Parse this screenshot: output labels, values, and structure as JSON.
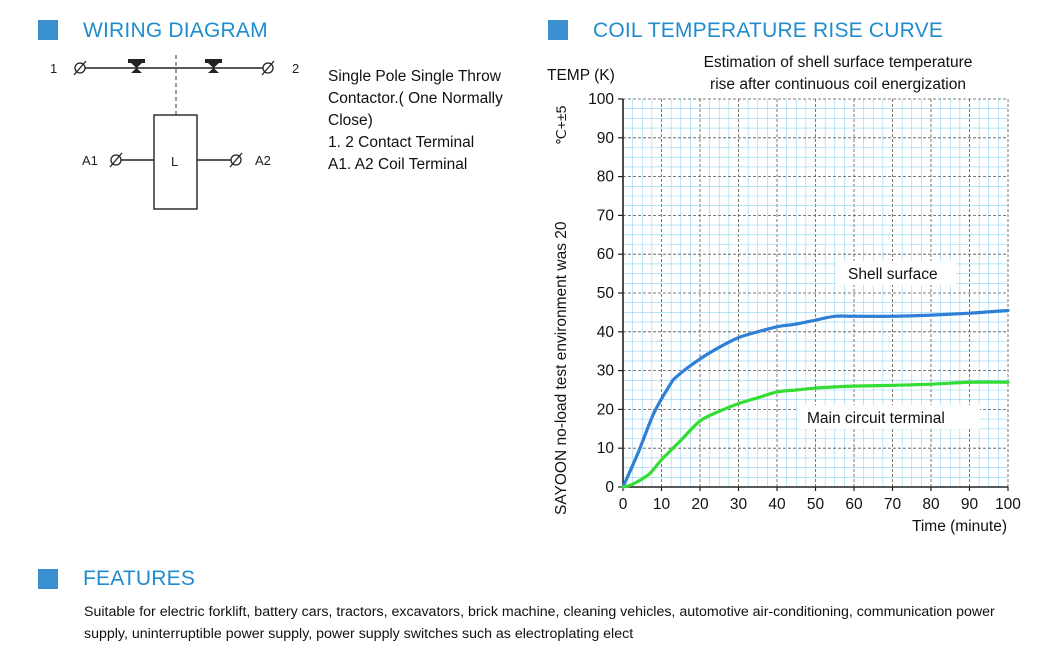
{
  "sections": {
    "wiring": "WIRING DIAGRAM",
    "curve": "COIL TEMPERATURE RISE CURVE",
    "features": "FEATURES"
  },
  "wiring_diagram": {
    "terminal_1": "1",
    "terminal_2": "2",
    "coil_a1": "A1",
    "coil_a2": "A2",
    "coil_label": "L"
  },
  "description": [
    "Single Pole Single Throw",
    "Contactor.( One Normally",
    "Close)",
    "1. 2 Contact Terminal",
    "A1. A2 Coil Terminal"
  ],
  "features_text": "Suitable for electric forklift, battery cars, tractors, excavators, brick machine, cleaning vehicles, automotive air-conditioning, communication power supply, uninterruptible power supply, power supply switches such as electroplating elect",
  "colors": {
    "accent": "#1f8ccf",
    "grid": "#8fd3f0",
    "series_shell": "#2f7fd6",
    "series_terminal": "#33dd33"
  },
  "chart_data": {
    "type": "line",
    "title": "Estimation of shell surface temperature rise after continuous coil energization",
    "title_lines": [
      "Estimation of shell surface temperature",
      "rise after continuous coil energization"
    ],
    "ylabel": "TEMP (K)",
    "side_note": "SAYOON no-load test environment was 20",
    "side_note_unit": "℃+±5",
    "xlabel": "Time (minute)",
    "xlim": [
      0,
      100
    ],
    "ylim": [
      0,
      100
    ],
    "xticks": [
      0,
      10,
      20,
      30,
      40,
      50,
      60,
      70,
      80,
      90,
      100
    ],
    "yticks": [
      0,
      10,
      20,
      30,
      40,
      50,
      60,
      70,
      80,
      90,
      100
    ],
    "grid": true,
    "series": [
      {
        "name": "Shell surface",
        "color": "#2f7fd6",
        "x": [
          0,
          4,
          8,
          12,
          14,
          20,
          25,
          30,
          35,
          40,
          45,
          50,
          55,
          60,
          70,
          80,
          90,
          100
        ],
        "y": [
          0,
          9,
          19,
          26,
          28.5,
          33,
          36,
          38.5,
          40,
          41.3,
          42,
          43,
          44,
          44,
          44,
          44.3,
          44.8,
          45.5
        ]
      },
      {
        "name": "Main circuit terminal",
        "color": "#33dd33",
        "x": [
          0,
          2,
          4,
          7,
          10,
          15,
          20,
          25,
          30,
          35,
          40,
          45,
          50,
          55,
          60,
          70,
          80,
          90,
          100
        ],
        "y": [
          0,
          0.5,
          1.5,
          3.5,
          7,
          12,
          17,
          19.5,
          21.5,
          23,
          24.5,
          25,
          25.5,
          25.8,
          26,
          26.2,
          26.5,
          27,
          27
        ]
      }
    ]
  }
}
